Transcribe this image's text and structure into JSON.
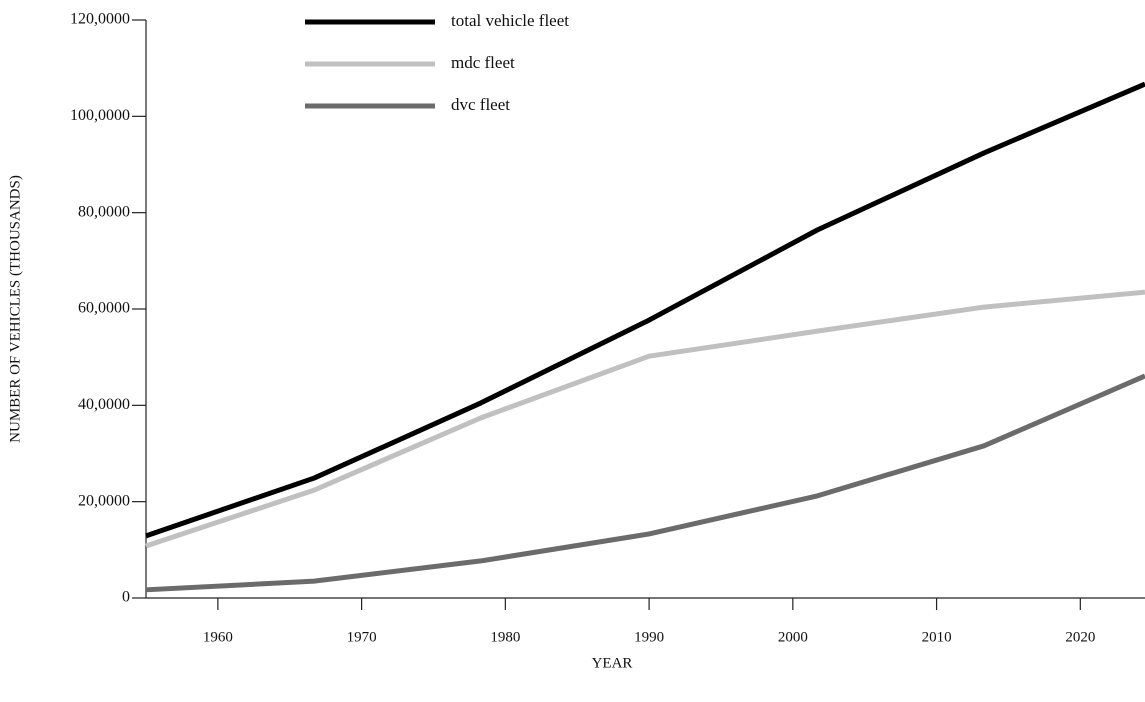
{
  "chart_data": {
    "type": "line",
    "x_label": "YEAR",
    "y_label": "NUMBER OF VEHICLES (THOUSANDS)",
    "x": [
      1955,
      1966.7,
      1978.3,
      1990,
      2001.7,
      2013.3,
      2024.5
    ],
    "series": [
      {
        "name": "total vehicle fleet",
        "color": "#000000",
        "values": [
          129000,
          249000,
          405000,
          577000,
          764000,
          924000,
          1067000
        ]
      },
      {
        "name": "mdc fleet",
        "color": "#c0c0c0",
        "values": [
          108000,
          224000,
          374000,
          502000,
          554000,
          604000,
          635000
        ]
      },
      {
        "name": "dvc fleet",
        "color": "#6b6b6b",
        "values": [
          17000,
          35000,
          77000,
          133000,
          212000,
          316000,
          461000
        ]
      }
    ],
    "xlim": [
      1955,
      2024.5
    ],
    "xticks": [
      1960,
      1970,
      1980,
      1990,
      2000,
      2010,
      2020
    ],
    "ylim": [
      0,
      1200000
    ],
    "yticks": [
      0,
      {
        "value": 200000,
        "label": "20,0000"
      },
      {
        "value": 400000,
        "label": "40,0000"
      },
      {
        "value": 600000,
        "label": "60,0000"
      },
      {
        "value": 800000,
        "label": "80,0000"
      },
      {
        "value": 1000000,
        "label": "100,0000"
      },
      {
        "value": 1200000,
        "label": "120,0000"
      }
    ],
    "legend": "upper-left",
    "grid": false
  }
}
